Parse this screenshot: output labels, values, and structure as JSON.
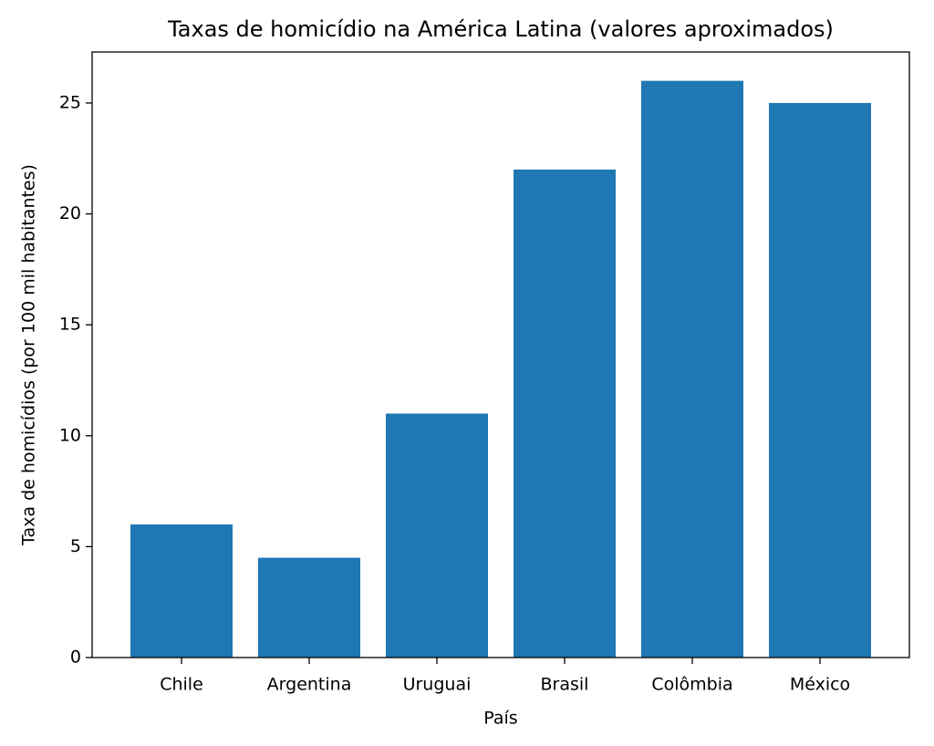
{
  "chart_data": {
    "type": "bar",
    "title": "Taxas de homicídio na América Latina (valores aproximados)",
    "x_label": "País",
    "y_label": "Taxa de homicídios (por 100 mil habitantes)",
    "categories": [
      "Chile",
      "Argentina",
      "Uruguai",
      "Brasil",
      "Colômbia",
      "México"
    ],
    "values": [
      6,
      4.5,
      11,
      22,
      26,
      25
    ],
    "color": "#1f77b4",
    "ylim": [
      0,
      27.3
    ],
    "yticks": [
      0,
      5,
      10,
      15,
      20,
      25
    ],
    "grid": false
  }
}
